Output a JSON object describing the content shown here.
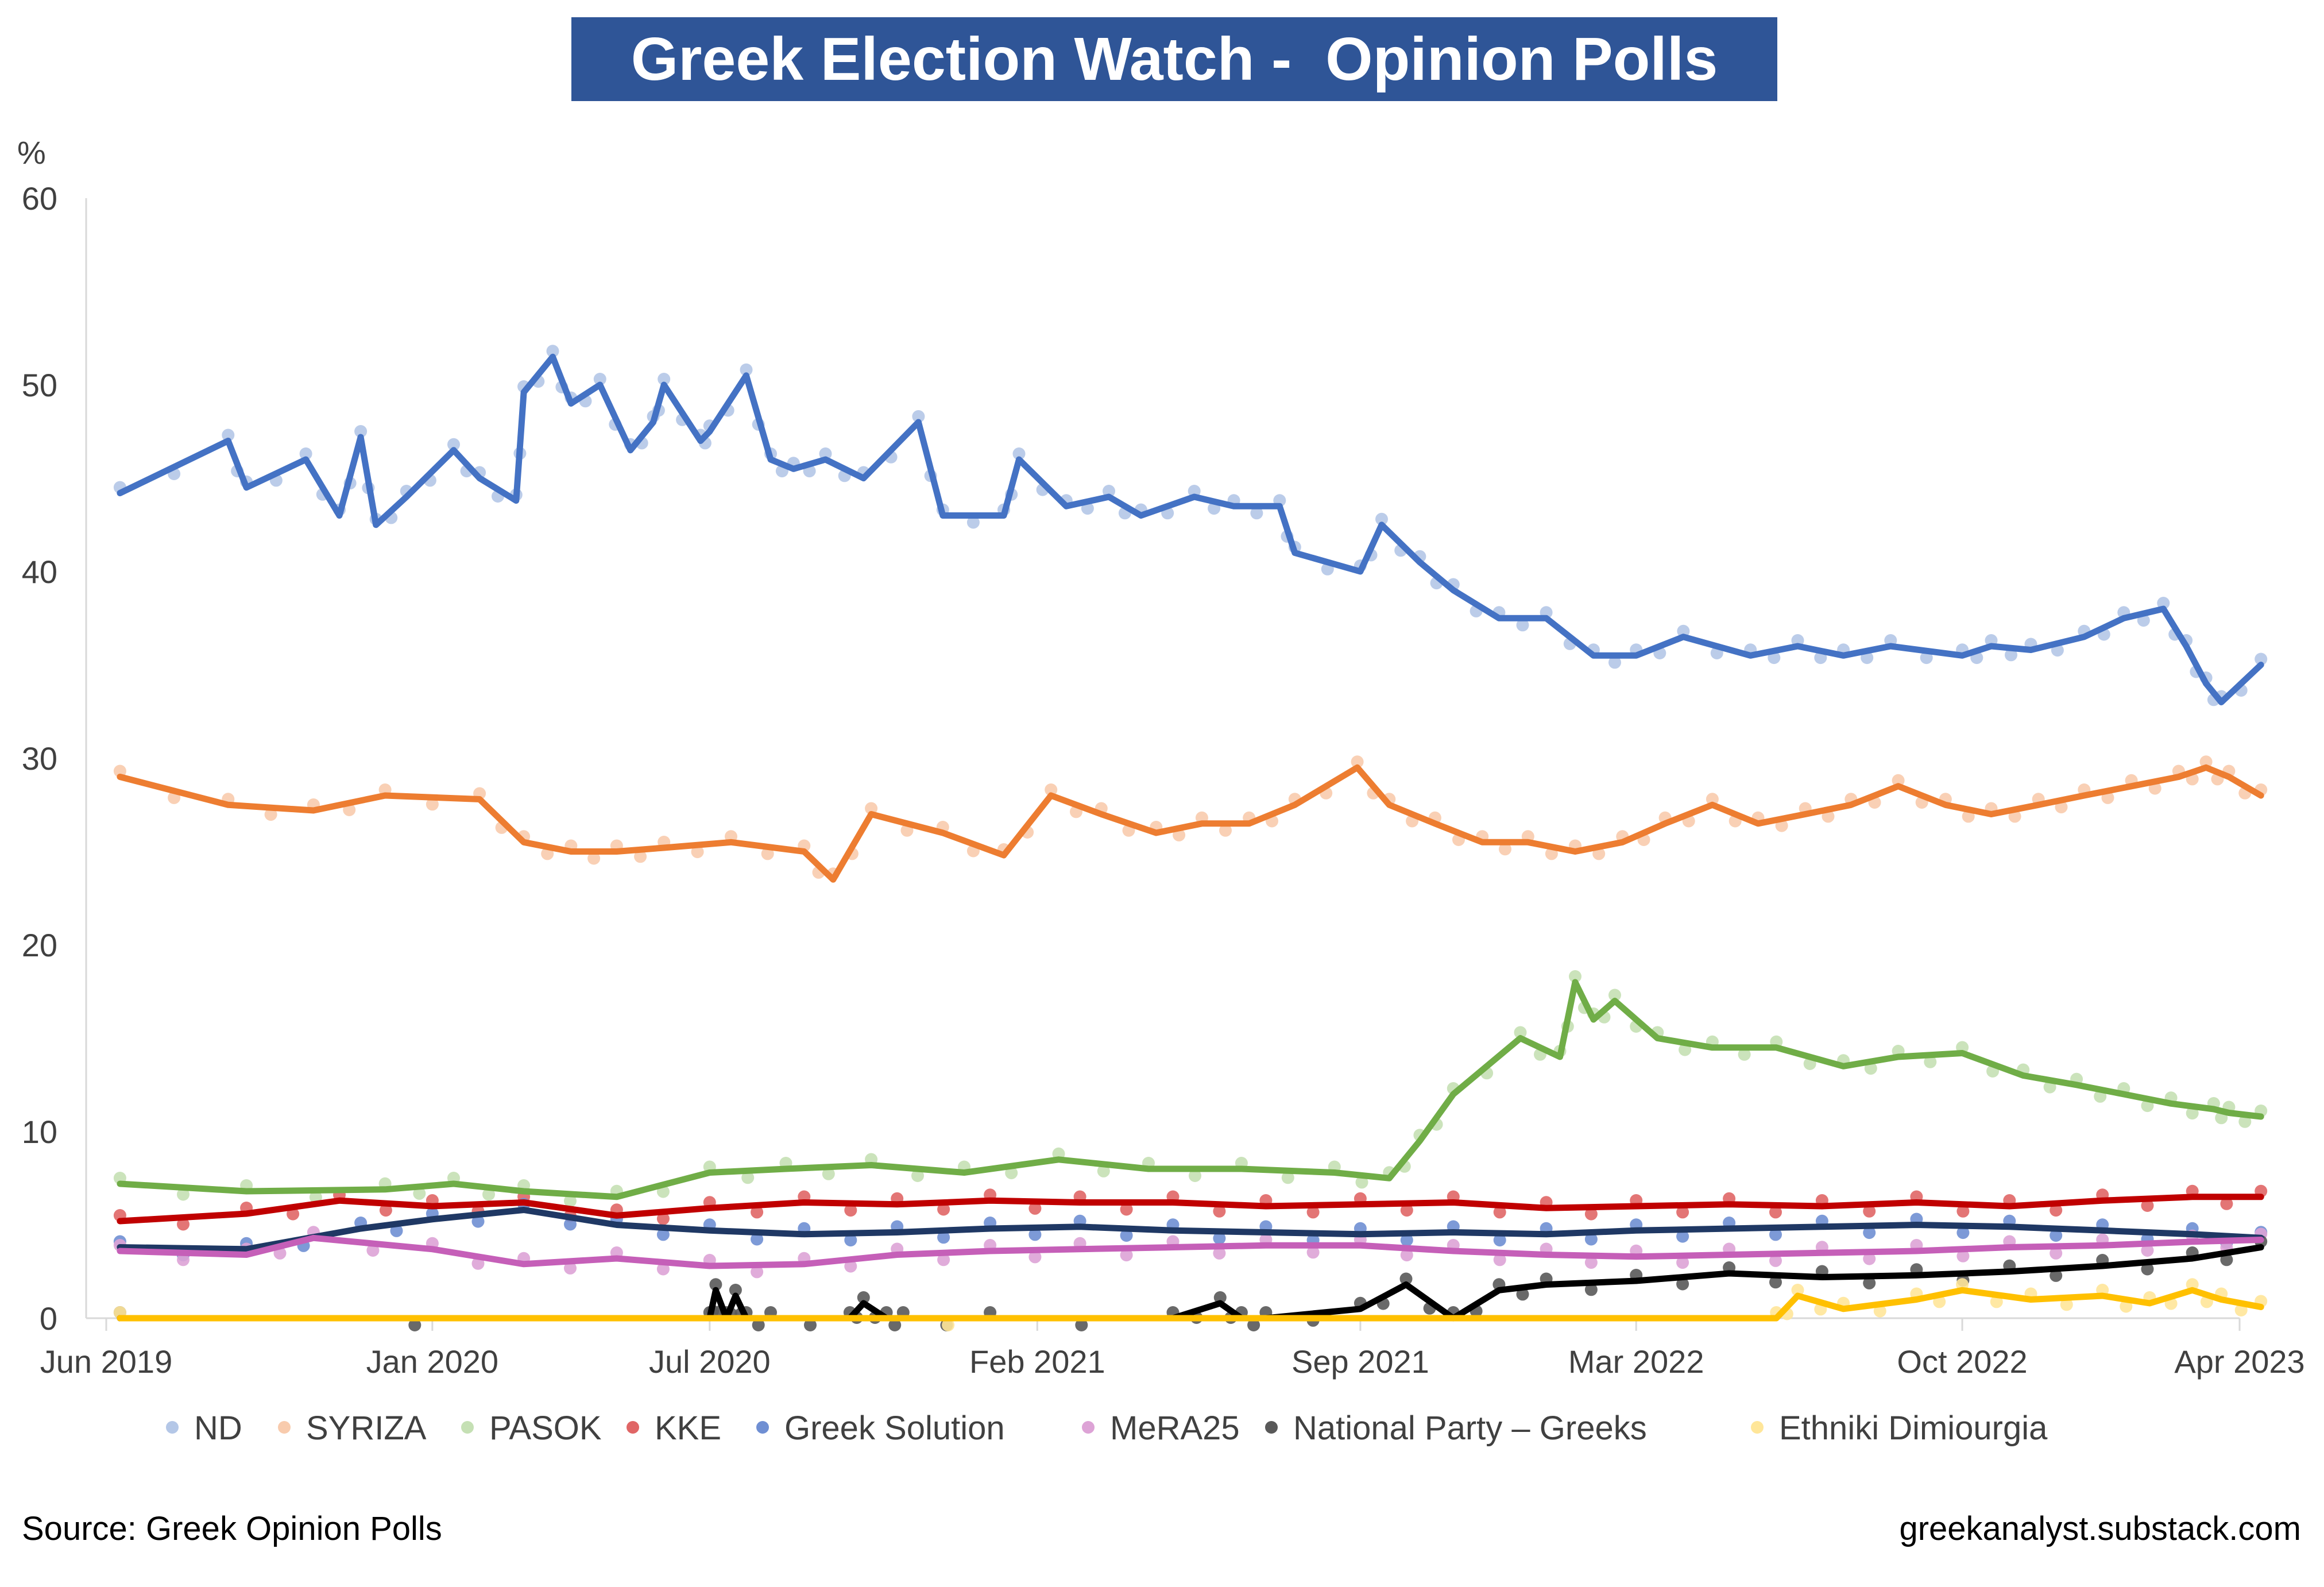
{
  "title": "Greek Election Watch -  Opinion Polls",
  "source": "Source: Greek Opinion Polls",
  "credit": "greekanalyst.substack.com",
  "chart_data": {
    "type": "line",
    "title": "Greek Election Watch -  Opinion Polls",
    "ylabel": "%",
    "ylim": [
      0,
      60
    ],
    "yticks": [
      0,
      10,
      20,
      30,
      40,
      50,
      60
    ],
    "xlim": [
      "2019-06-01",
      "2023-04-01"
    ],
    "xticks": [
      "2019-06-01",
      "2020-01-01",
      "2020-07-01",
      "2021-02-01",
      "2021-09-01",
      "2022-03-01",
      "2022-10-01",
      "2023-04-01"
    ],
    "xtick_labels": [
      "Jun 2019",
      "Jan 2020",
      "Jul 2020",
      "Feb 2021",
      "Sep 2021",
      "Mar 2022",
      "Oct 2022",
      "Apr 2023"
    ],
    "grid": false,
    "legend_position": "bottom",
    "markers": "light dots = individual polls, lines = average",
    "series": [
      {
        "name": "ND",
        "color": "#4472c4",
        "dot_color": "#b4c7e7",
        "x": [
          "2019-06-10",
          "2019-08-20",
          "2019-09-01",
          "2019-10-10",
          "2019-11-01",
          "2019-11-15",
          "2019-11-25",
          "2019-12-15",
          "2020-01-15",
          "2020-02-01",
          "2020-02-25",
          "2020-03-01",
          "2020-03-20",
          "2020-04-01",
          "2020-04-20",
          "2020-05-10",
          "2020-05-25",
          "2020-06-01",
          "2020-06-25",
          "2020-07-01",
          "2020-07-25",
          "2020-08-10",
          "2020-08-25",
          "2020-09-15",
          "2020-10-10",
          "2020-11-15",
          "2020-12-01",
          "2021-01-10",
          "2021-01-20",
          "2021-02-20",
          "2021-03-20",
          "2021-04-10",
          "2021-05-15",
          "2021-06-10",
          "2021-07-10",
          "2021-07-20",
          "2021-09-01",
          "2021-09-15",
          "2021-10-10",
          "2021-11-01",
          "2021-12-01",
          "2022-01-01",
          "2022-02-01",
          "2022-03-01",
          "2022-04-01",
          "2022-05-15",
          "2022-06-15",
          "2022-07-15",
          "2022-08-15",
          "2022-10-01",
          "2022-10-20",
          "2022-11-15",
          "2022-12-20",
          "2023-01-15",
          "2023-02-10",
          "2023-02-25",
          "2023-03-10",
          "2023-03-20",
          "2023-04-15"
        ],
        "y": [
          44.2,
          47.0,
          44.5,
          46.0,
          43.0,
          47.2,
          42.5,
          44.0,
          46.5,
          45.0,
          43.8,
          49.6,
          51.5,
          49.0,
          50.0,
          46.5,
          48.0,
          50.0,
          47.0,
          47.5,
          50.5,
          46.0,
          45.5,
          46.0,
          45.0,
          48.0,
          43.0,
          43.0,
          46.0,
          43.5,
          44.0,
          43.0,
          44.0,
          43.5,
          43.5,
          41.0,
          40.0,
          42.5,
          40.5,
          39.0,
          37.5,
          37.5,
          35.5,
          35.5,
          36.5,
          35.5,
          36.0,
          35.5,
          36.0,
          35.5,
          36.0,
          35.8,
          36.5,
          37.5,
          38.0,
          36.0,
          34.0,
          33.0,
          35.0
        ]
      },
      {
        "name": "SYRIZA",
        "color": "#ed7d31",
        "dot_color": "#f8cbad",
        "x": [
          "2019-06-10",
          "2019-08-20",
          "2019-10-15",
          "2019-12-01",
          "2020-02-01",
          "2020-03-01",
          "2020-04-01",
          "2020-05-01",
          "2020-06-01",
          "2020-07-15",
          "2020-09-01",
          "2020-09-20",
          "2020-10-15",
          "2020-12-01",
          "2021-01-10",
          "2021-02-10",
          "2021-03-15",
          "2021-04-20",
          "2021-05-20",
          "2021-06-20",
          "2021-07-20",
          "2021-08-30",
          "2021-09-20",
          "2021-10-20",
          "2021-11-20",
          "2021-12-20",
          "2022-01-20",
          "2022-02-20",
          "2022-03-20",
          "2022-04-20",
          "2022-05-20",
          "2022-06-20",
          "2022-07-20",
          "2022-08-20",
          "2022-09-20",
          "2022-10-20",
          "2022-11-20",
          "2022-12-20",
          "2023-01-20",
          "2023-02-20",
          "2023-03-10",
          "2023-03-25",
          "2023-04-15"
        ],
        "y": [
          29.0,
          27.5,
          27.2,
          28.0,
          27.8,
          25.5,
          25.0,
          25.0,
          25.2,
          25.5,
          25.0,
          23.5,
          27.0,
          26.0,
          24.8,
          28.0,
          27.0,
          26.0,
          26.5,
          26.5,
          27.5,
          29.5,
          27.5,
          26.5,
          25.5,
          25.5,
          25.0,
          25.5,
          26.5,
          27.5,
          26.5,
          27.0,
          27.5,
          28.5,
          27.5,
          27.0,
          27.5,
          28.0,
          28.5,
          29.0,
          29.5,
          29.0,
          28.0
        ]
      },
      {
        "name": "PASOK",
        "color": "#70ad47",
        "dot_color": "#c5e0b4",
        "x": [
          "2019-06-10",
          "2019-09-01",
          "2019-12-01",
          "2020-01-15",
          "2020-03-01",
          "2020-05-01",
          "2020-07-01",
          "2020-08-20",
          "2020-10-15",
          "2020-12-15",
          "2021-02-15",
          "2021-04-15",
          "2021-06-15",
          "2021-08-15",
          "2021-09-20",
          "2021-10-10",
          "2021-11-01",
          "2021-12-15",
          "2022-01-10",
          "2022-01-20",
          "2022-02-01",
          "2022-02-15",
          "2022-03-15",
          "2022-04-20",
          "2022-06-01",
          "2022-07-15",
          "2022-08-20",
          "2022-10-01",
          "2022-11-10",
          "2022-12-15",
          "2023-01-15",
          "2023-02-15",
          "2023-03-15",
          "2023-03-25",
          "2023-04-15"
        ],
        "y": [
          7.2,
          6.8,
          6.9,
          7.2,
          6.8,
          6.5,
          7.8,
          8.0,
          8.2,
          7.8,
          8.5,
          8.0,
          8.0,
          7.8,
          7.5,
          9.5,
          12.0,
          15.0,
          14.0,
          18.0,
          16.0,
          17.0,
          15.0,
          14.5,
          14.5,
          13.5,
          14.0,
          14.2,
          13.0,
          12.5,
          12.0,
          11.5,
          11.2,
          11.0,
          10.8
        ]
      },
      {
        "name": "KKE",
        "color": "#c00000",
        "dot_color": "#e06666",
        "x": [
          "2019-06-10",
          "2019-09-01",
          "2019-11-01",
          "2020-01-01",
          "2020-03-01",
          "2020-05-01",
          "2020-07-01",
          "2020-09-01",
          "2020-11-01",
          "2021-01-01",
          "2021-03-01",
          "2021-05-01",
          "2021-07-01",
          "2021-09-01",
          "2021-11-01",
          "2022-01-01",
          "2022-03-01",
          "2022-05-01",
          "2022-07-01",
          "2022-09-01",
          "2022-11-01",
          "2023-01-01",
          "2023-03-01",
          "2023-04-15"
        ],
        "y": [
          5.2,
          5.6,
          6.3,
          6.0,
          6.2,
          5.5,
          5.9,
          6.2,
          6.1,
          6.3,
          6.2,
          6.2,
          6.0,
          6.1,
          6.2,
          5.9,
          6.0,
          6.1,
          6.0,
          6.2,
          6.0,
          6.3,
          6.5,
          6.5
        ]
      },
      {
        "name": "Greek Solution",
        "color": "#1f3864",
        "dot_color": "#6f8fd3",
        "x": [
          "2019-06-10",
          "2019-09-01",
          "2019-11-15",
          "2020-01-01",
          "2020-03-01",
          "2020-05-01",
          "2020-07-01",
          "2020-09-01",
          "2020-11-01",
          "2021-01-01",
          "2021-03-01",
          "2021-05-01",
          "2021-07-01",
          "2021-09-01",
          "2021-11-01",
          "2022-01-01",
          "2022-03-01",
          "2022-05-01",
          "2022-07-01",
          "2022-09-01",
          "2022-11-01",
          "2023-01-01",
          "2023-03-01",
          "2023-04-15"
        ],
        "y": [
          3.8,
          3.7,
          4.8,
          5.3,
          5.8,
          5.0,
          4.7,
          4.5,
          4.6,
          4.8,
          4.9,
          4.7,
          4.6,
          4.5,
          4.6,
          4.5,
          4.7,
          4.8,
          4.9,
          5.0,
          4.9,
          4.7,
          4.5,
          4.3
        ]
      },
      {
        "name": "MeRA25",
        "color": "#c55fb8",
        "dot_color": "#dda3d6",
        "x": [
          "2019-06-10",
          "2019-09-01",
          "2019-10-15",
          "2020-01-01",
          "2020-03-01",
          "2020-05-01",
          "2020-07-01",
          "2020-09-01",
          "2020-11-01",
          "2021-01-01",
          "2021-03-01",
          "2021-05-01",
          "2021-07-01",
          "2021-09-01",
          "2021-11-01",
          "2022-01-01",
          "2022-03-01",
          "2022-05-01",
          "2022-07-01",
          "2022-09-01",
          "2022-11-01",
          "2023-01-01",
          "2023-03-01",
          "2023-04-15"
        ],
        "y": [
          3.6,
          3.4,
          4.3,
          3.7,
          2.9,
          3.2,
          2.8,
          2.9,
          3.4,
          3.6,
          3.7,
          3.8,
          3.9,
          3.9,
          3.6,
          3.4,
          3.3,
          3.4,
          3.5,
          3.6,
          3.8,
          3.9,
          4.1,
          4.2
        ]
      },
      {
        "name": "National Party – Greeks",
        "color": "#000000",
        "dot_color": "#595959",
        "x": [
          "2019-06-10",
          "2020-07-01",
          "2020-07-05",
          "2020-07-12",
          "2020-07-18",
          "2020-07-25",
          "2020-08-10",
          "2020-10-01",
          "2020-10-10",
          "2020-10-25",
          "2020-11-05",
          "2021-01-01",
          "2021-05-01",
          "2021-06-01",
          "2021-06-15",
          "2021-07-01",
          "2021-09-01",
          "2021-10-01",
          "2021-11-01",
          "2021-12-01",
          "2022-01-01",
          "2022-03-01",
          "2022-05-01",
          "2022-07-01",
          "2022-09-01",
          "2022-11-01",
          "2023-01-01",
          "2023-03-01",
          "2023-04-15"
        ],
        "y": [
          0,
          0,
          1.5,
          0,
          1.2,
          0,
          0,
          0,
          0.8,
          0,
          0,
          0,
          0,
          0.8,
          0,
          0,
          0.5,
          1.8,
          0,
          1.5,
          1.8,
          2.0,
          2.4,
          2.2,
          2.3,
          2.5,
          2.8,
          3.2,
          3.8
        ]
      },
      {
        "name": "Ethniki Dimiourgia",
        "color": "#ffc000",
        "dot_color": "#ffe699",
        "x": [
          "2019-06-10",
          "2022-06-01",
          "2022-06-15",
          "2022-07-15",
          "2022-09-01",
          "2022-10-01",
          "2022-11-15",
          "2023-01-01",
          "2023-02-01",
          "2023-03-01",
          "2023-03-20",
          "2023-04-15"
        ],
        "y": [
          0,
          0,
          1.2,
          0.5,
          1.0,
          1.5,
          1.0,
          1.2,
          0.8,
          1.5,
          1.0,
          0.6
        ]
      }
    ]
  }
}
